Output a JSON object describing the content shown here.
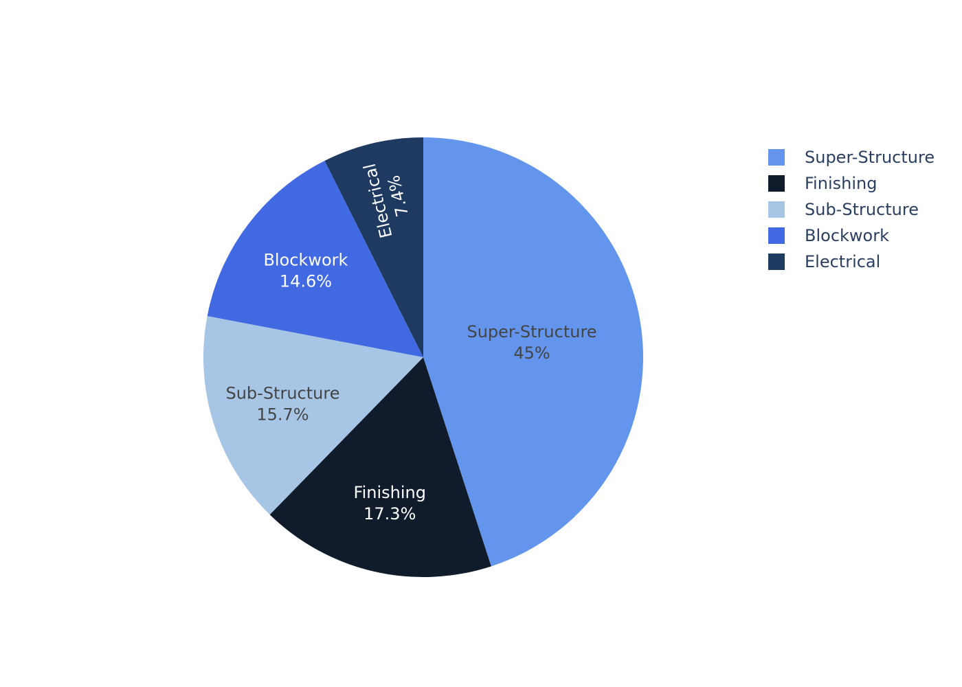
{
  "chart_data": {
    "type": "pie",
    "labels": [
      "Super-Structure",
      "Finishing",
      "Sub-Structure",
      "Blockwork",
      "Electrical"
    ],
    "values": [
      45.0,
      17.3,
      15.7,
      14.6,
      7.4
    ],
    "value_labels": [
      "45%",
      "17.3%",
      "15.7%",
      "14.6%",
      "7.4%"
    ],
    "colors": [
      "#6495ED",
      "#101C2C",
      "#A7C6E5",
      "#4169E1",
      "#1F3A60"
    ],
    "label_colors": [
      "#444444",
      "#ffffff",
      "#444444",
      "#ffffff",
      "#ffffff"
    ],
    "direction": "clockwise",
    "start_angle": "12 o'clock",
    "text_info": "label+percent",
    "legend_position": "right"
  },
  "legend": {
    "items": [
      {
        "label": "Super-Structure",
        "color": "#6495ED"
      },
      {
        "label": "Finishing",
        "color": "#101C2C"
      },
      {
        "label": "Sub-Structure",
        "color": "#A7C6E5"
      },
      {
        "label": "Blockwork",
        "color": "#4169E1"
      },
      {
        "label": "Electrical",
        "color": "#1F3A60"
      }
    ]
  }
}
